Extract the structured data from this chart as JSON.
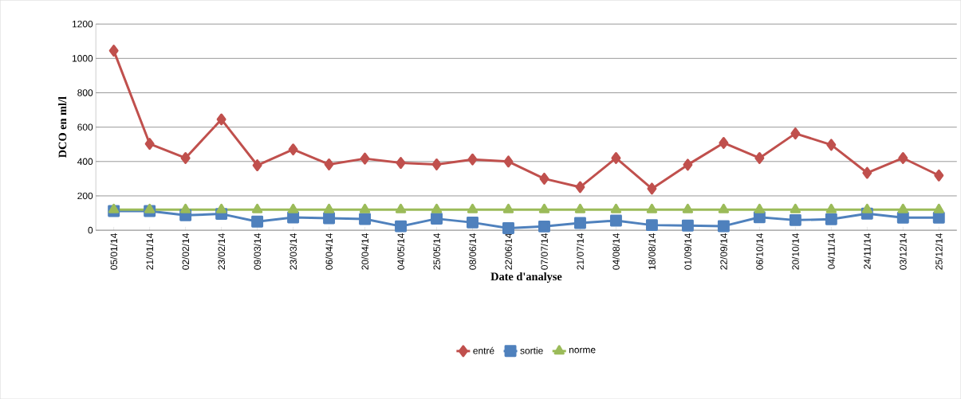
{
  "chart_data": {
    "type": "line",
    "xlabel": "Date d'analyse",
    "ylabel": "DCO en ml/l",
    "categories": [
      "05/01/14",
      "21/01/14",
      "02/02/14",
      "23/02/14",
      "09/03/14",
      "23/03/14",
      "06/04/14",
      "20/04/14",
      "04/05/14",
      "25/05/14",
      "08/06/14",
      "22/06/14",
      "07/07/14",
      "21/07/14",
      "04/08/14",
      "18/08/14",
      "01/09/14",
      "22/09/14",
      "06/10/14",
      "20/10/14",
      "04/11/14",
      "24/11/14",
      "03/12/14",
      "25/12/14"
    ],
    "series": [
      {
        "name": "entré",
        "color": "#c0504d",
        "marker": "diamond",
        "values": [
          1045,
          503,
          420,
          645,
          378,
          470,
          383,
          417,
          392,
          383,
          412,
          400,
          300,
          251,
          420,
          242,
          381,
          508,
          420,
          563,
          497,
          334,
          420,
          319
        ]
      },
      {
        "name": "sortie",
        "color": "#4f81bd",
        "marker": "square",
        "values": [
          112,
          112,
          87,
          95,
          50,
          75,
          70,
          65,
          23,
          67,
          45,
          12,
          22,
          42,
          56,
          30,
          27,
          24,
          76,
          59,
          64,
          97,
          73,
          73
        ]
      },
      {
        "name": "norme",
        "color": "#9bbb59",
        "marker": "triangle",
        "values": [
          120,
          120,
          120,
          120,
          120,
          120,
          120,
          120,
          120,
          120,
          120,
          120,
          120,
          120,
          120,
          120,
          120,
          120,
          120,
          120,
          120,
          120,
          120,
          120
        ]
      }
    ],
    "ylim": [
      0,
      1200
    ],
    "yticks": [
      0,
      200,
      400,
      600,
      800,
      1000,
      1200
    ],
    "grid": "y",
    "legend": "bottom",
    "line_style": "solid"
  }
}
